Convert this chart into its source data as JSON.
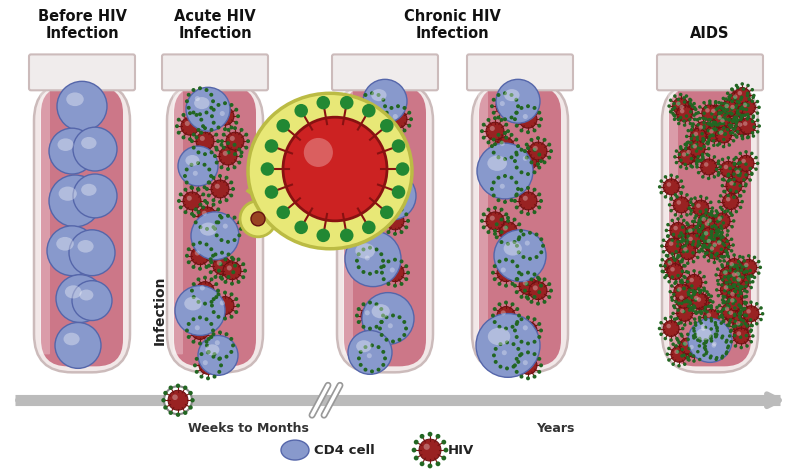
{
  "background_color": "#ffffff",
  "tube_fill_color": "#cc7788",
  "tube_glass_color": "#f2e8e8",
  "tube_rim_color": "#e0d8d8",
  "cd4_color": "#8899cc",
  "cd4_edge_color": "#5566aa",
  "hiv_color": "#992222",
  "hiv_edge_color": "#661111",
  "hiv_spike_color": "#771111",
  "hiv_dot_color": "#226622",
  "arrow_color": "#bbbbbb",
  "yellow_mag": "#e8e877",
  "yellow_mag_edge": "#bbbb44",
  "titles": [
    [
      "Before HIV",
      "Infection"
    ],
    [
      "Acute HIV",
      "Infection"
    ],
    [
      "Chronic HIV",
      "Infection"
    ],
    [
      "AIDS"
    ]
  ],
  "timeline_label1": "Weeks to Months",
  "timeline_label2": "Years",
  "legend_cd4": "CD4 cell",
  "legend_hiv": "HIV",
  "infection_label": "Infection"
}
